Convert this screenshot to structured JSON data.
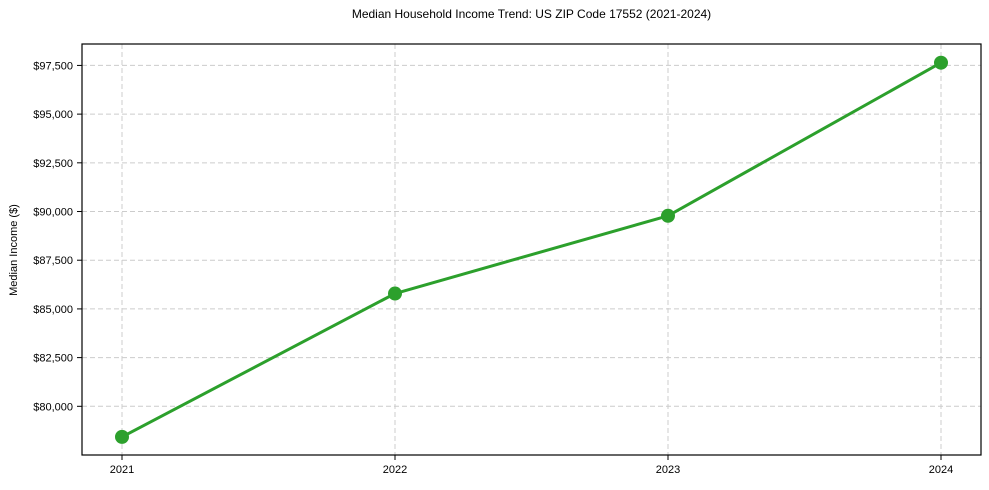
{
  "chart_data": {
    "type": "line",
    "title": "Median Household Income Trend: US ZIP Code 17552 (2021-2024)",
    "xlabel": "",
    "ylabel": "Median Income ($)",
    "categories": [
      "2021",
      "2022",
      "2023",
      "2024"
    ],
    "series": [
      {
        "name": "Median Household Income",
        "values": [
          78430,
          85790,
          89780,
          97640
        ],
        "color": "#2ca02c",
        "marker": "circle"
      }
    ],
    "yticks": [
      80000,
      82500,
      85000,
      87500,
      90000,
      92500,
      95000,
      97500
    ],
    "ytick_labels": [
      "$80,000",
      "$82,500",
      "$85,000",
      "$87,500",
      "$90,000",
      "$92,500",
      "$95,000",
      "$97,500"
    ],
    "ylim": [
      77500,
      98600
    ],
    "grid": "dashed",
    "grid_color": "#cccccc",
    "spine_color": "#000000",
    "legend": "none"
  }
}
